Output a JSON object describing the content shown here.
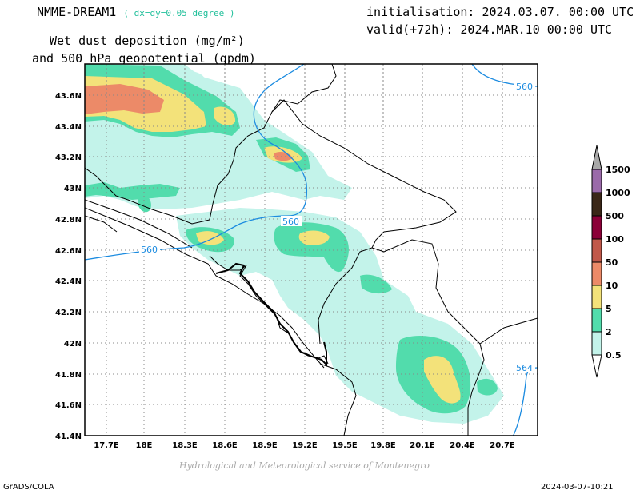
{
  "header": {
    "model": "NMME-DREAM1",
    "resolution": "( dx=dy=0.05 degree )",
    "param_line1": "Wet dust deposition (mg/m²)",
    "param_line2": "and 500 hPa geopotential (gpdm)",
    "init": "initialisation: 2024.03.07. 00:00 UTC",
    "valid": "valid(+72h): 2024.MAR.10 00:00 UTC"
  },
  "map": {
    "lat_labels": [
      "43.6N",
      "43.4N",
      "43.2N",
      "43N",
      "42.8N",
      "42.6N",
      "42.4N",
      "42.2N",
      "42N",
      "41.8N",
      "41.6N",
      "41.4N"
    ],
    "lon_labels": [
      "17.7E",
      "18E",
      "18.3E",
      "18.6E",
      "18.9E",
      "19.2E",
      "19.5E",
      "19.8E",
      "20.1E",
      "20.4E",
      "20.7E"
    ],
    "contour_labels": [
      "560",
      "560",
      "560",
      "564"
    ],
    "colors": {
      "land_border": "#000000",
      "grid": "#888888",
      "contour": "#1b8be0"
    }
  },
  "legend": {
    "levels": [
      {
        "label": "1500",
        "color": "#a8a8a8"
      },
      {
        "label": "1000",
        "color": "#9a6aa9"
      },
      {
        "label": "500",
        "color": "#3a2718"
      },
      {
        "label": "100",
        "color": "#8b0038"
      },
      {
        "label": "50",
        "color": "#c0584a"
      },
      {
        "label": "10",
        "color": "#ec8a68"
      },
      {
        "label": "5",
        "color": "#f3e27a"
      },
      {
        "label": "2",
        "color": "#52dcac"
      },
      {
        "label": "0.5",
        "color": "#c3f3ea"
      }
    ]
  },
  "footer": {
    "credit": "Hydrological and Meteorological service of Montenegro",
    "left": "GrADS/COLA",
    "right": "2024-03-07-10:21"
  }
}
